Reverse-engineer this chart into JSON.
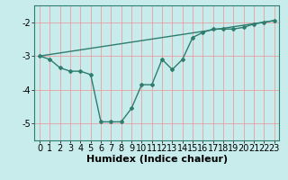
{
  "xlabel": "Humidex (Indice chaleur)",
  "ylabel": "",
  "background_color": "#c8ecec",
  "grid_color": "#e8a0a0",
  "line_color": "#2e7d6e",
  "xlim": [
    -0.5,
    23.5
  ],
  "ylim": [
    -5.5,
    -1.5
  ],
  "yticks": [
    -5,
    -4,
    -3,
    -2
  ],
  "xticks": [
    0,
    1,
    2,
    3,
    4,
    5,
    6,
    7,
    8,
    9,
    10,
    11,
    12,
    13,
    14,
    15,
    16,
    17,
    18,
    19,
    20,
    21,
    22,
    23
  ],
  "curve1_x": [
    0,
    1,
    2,
    3,
    4,
    5,
    6,
    7,
    8,
    9,
    10,
    11,
    12,
    13,
    14,
    15,
    16,
    17,
    18,
    19,
    20,
    21,
    22,
    23
  ],
  "curve1_y": [
    -3.0,
    -3.1,
    -3.35,
    -3.45,
    -3.45,
    -3.55,
    -4.95,
    -4.95,
    -4.95,
    -4.55,
    -3.85,
    -3.85,
    -3.1,
    -3.4,
    -3.1,
    -2.45,
    -2.3,
    -2.2,
    -2.2,
    -2.2,
    -2.15,
    -2.05,
    -2.0,
    -1.95
  ],
  "curve2_x": [
    0,
    23
  ],
  "curve2_y": [
    -3.0,
    -1.95
  ],
  "font_size_xlabel": 8,
  "font_size_ticks": 7,
  "line_width": 1.0,
  "marker": "D",
  "marker_size": 2.0
}
